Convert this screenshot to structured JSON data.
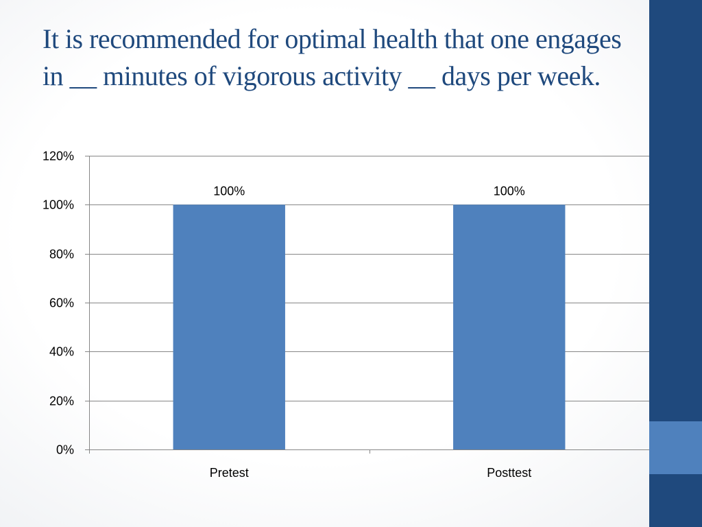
{
  "slide": {
    "title": "It is recommended for optimal health that one engages in __ minutes of vigorous activity __ days per week."
  },
  "colors": {
    "title": "#1f497d",
    "sidebar": "#1f497d",
    "accent": "#4f81bd",
    "bar": "#4f81bd",
    "grid": "#868686"
  },
  "chart_data": {
    "type": "bar",
    "categories": [
      "Pretest",
      "Posttest"
    ],
    "values": [
      100,
      100
    ],
    "data_labels": [
      "100%",
      "100%"
    ],
    "y_tick_labels": [
      "0%",
      "20%",
      "40%",
      "60%",
      "80%",
      "100%",
      "120%"
    ],
    "ylim": [
      0,
      120
    ],
    "y_unit": "%",
    "grid": true,
    "legend": "none",
    "title": "",
    "xlabel": "",
    "ylabel": ""
  }
}
